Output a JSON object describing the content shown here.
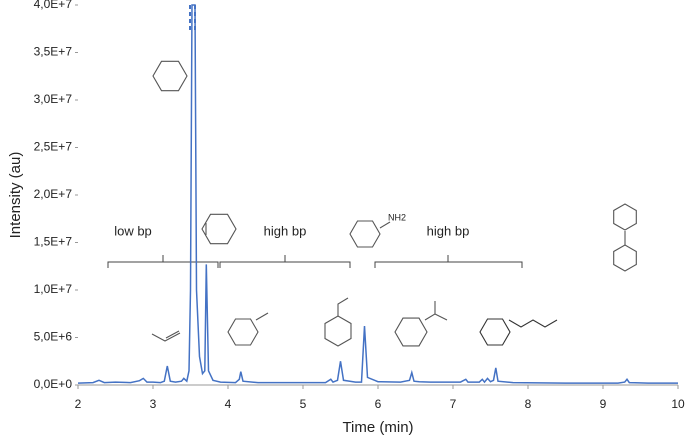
{
  "chart_data": {
    "type": "line",
    "x_label": "Time (min)",
    "y_label": "Intensity (au)",
    "xlim": [
      2,
      10
    ],
    "xticks": [
      2,
      3,
      4,
      5,
      6,
      7,
      8,
      9,
      10
    ],
    "ylim": [
      0,
      40000000
    ],
    "yticks": [
      {
        "value": 0,
        "label": "0,0E+0"
      },
      {
        "value": 5000000,
        "label": "5,0E+6"
      },
      {
        "value": 10000000,
        "label": "1,0E+7"
      },
      {
        "value": 15000000,
        "label": "1,5E+7"
      },
      {
        "value": 20000000,
        "label": "2,0E+7"
      },
      {
        "value": 25000000,
        "label": "2,5E+7"
      },
      {
        "value": 30000000,
        "label": "3,0E+7"
      },
      {
        "value": 35000000,
        "label": "3,5E+7"
      },
      {
        "value": 40000000,
        "label": "4,0E+7"
      }
    ],
    "grid": false,
    "annotations": [
      "low bp",
      "high bp",
      "high bp",
      "NH2"
    ],
    "series": [
      {
        "color": "#4472c4",
        "x": [
          2.0,
          2.2,
          2.28,
          2.35,
          2.5,
          2.7,
          2.82,
          2.87,
          2.92,
          3.0,
          3.1,
          3.15,
          3.19,
          3.23,
          3.3,
          3.38,
          3.41,
          3.45,
          3.48,
          3.5,
          3.52,
          3.56,
          3.58,
          3.62,
          3.66,
          3.69,
          3.71,
          3.74,
          3.8,
          3.9,
          4.1,
          4.15,
          4.17,
          4.2,
          4.4,
          4.7,
          5.0,
          5.3,
          5.37,
          5.4,
          5.46,
          5.5,
          5.54,
          5.7,
          5.78,
          5.82,
          5.86,
          6.0,
          6.3,
          6.42,
          6.45,
          6.48,
          6.55,
          6.7,
          7.1,
          7.17,
          7.2,
          7.35,
          7.39,
          7.42,
          7.46,
          7.5,
          7.54,
          7.57,
          7.6,
          7.8,
          8.5,
          9.2,
          9.29,
          9.32,
          9.35,
          9.6,
          10.0
        ],
        "values": [
          200000,
          250000,
          500000,
          250000,
          300000,
          250000,
          450000,
          700000,
          300000,
          300000,
          250000,
          400000,
          2000000,
          400000,
          300000,
          400000,
          700000,
          400000,
          1500000,
          10000000,
          40000000,
          40000000,
          10000000,
          3000000,
          1200000,
          1500000,
          12700000,
          1500000,
          500000,
          300000,
          250000,
          600000,
          1400000,
          400000,
          250000,
          250000,
          250000,
          250000,
          600000,
          300000,
          500000,
          2500000,
          500000,
          300000,
          300000,
          6200000,
          800000,
          350000,
          300000,
          500000,
          1300000,
          400000,
          350000,
          300000,
          300000,
          600000,
          300000,
          300000,
          600000,
          300000,
          700000,
          350000,
          500000,
          1800000,
          400000,
          250000,
          200000,
          200000,
          300000,
          600000,
          250000,
          200000,
          200000
        ]
      }
    ]
  }
}
